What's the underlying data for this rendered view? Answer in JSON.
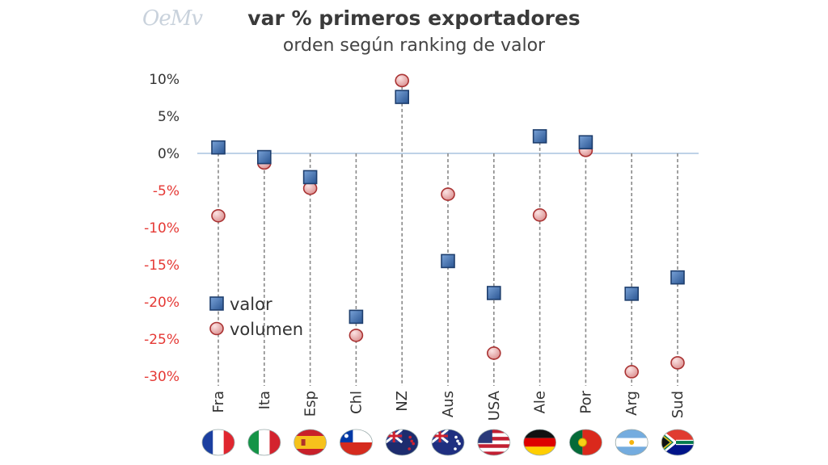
{
  "header": {
    "logo": "OeMv",
    "title": "var % primeros exportadores",
    "subtitle": "orden según ranking de valor"
  },
  "chart_data": {
    "type": "scatter",
    "title": "var % primeros exportadores",
    "subtitle": "orden según ranking de valor",
    "categories": [
      "Fra",
      "Ita",
      "Esp",
      "Chl",
      "NZ",
      "Aus",
      "USA",
      "Ale",
      "Por",
      "Arg",
      "Sud"
    ],
    "flags": [
      "france-flag",
      "italy-flag",
      "spain-flag",
      "chile-flag",
      "new-zealand-flag",
      "australia-flag",
      "usa-flag",
      "germany-flag",
      "portugal-flag",
      "argentina-flag",
      "south-africa-flag"
    ],
    "series": [
      {
        "name": "valor",
        "marker": "square",
        "color": "#3d6fb0",
        "values": [
          0.8,
          -0.5,
          -3.2,
          -22.0,
          7.6,
          -14.5,
          -18.8,
          2.3,
          1.5,
          -18.9,
          -16.7
        ]
      },
      {
        "name": "volumen",
        "marker": "circle",
        "color": "#e8a8a8",
        "values": [
          -8.4,
          -1.3,
          -4.7,
          -24.5,
          9.8,
          -5.5,
          -26.9,
          -8.3,
          0.4,
          -29.4,
          -28.2
        ]
      }
    ],
    "ylim": [
      -30,
      10
    ],
    "yticks": [
      10,
      5,
      0,
      -5,
      -10,
      -15,
      -20,
      -25,
      -30
    ],
    "ytick_labels": [
      "10%",
      "5%",
      "0%",
      "-5%",
      "-10%",
      "-15%",
      "-20%",
      "-25%",
      "-30%"
    ],
    "negative_tick_color": "#e53935",
    "positive_tick_color": "#333333",
    "legend_position": "left",
    "grid": false
  }
}
